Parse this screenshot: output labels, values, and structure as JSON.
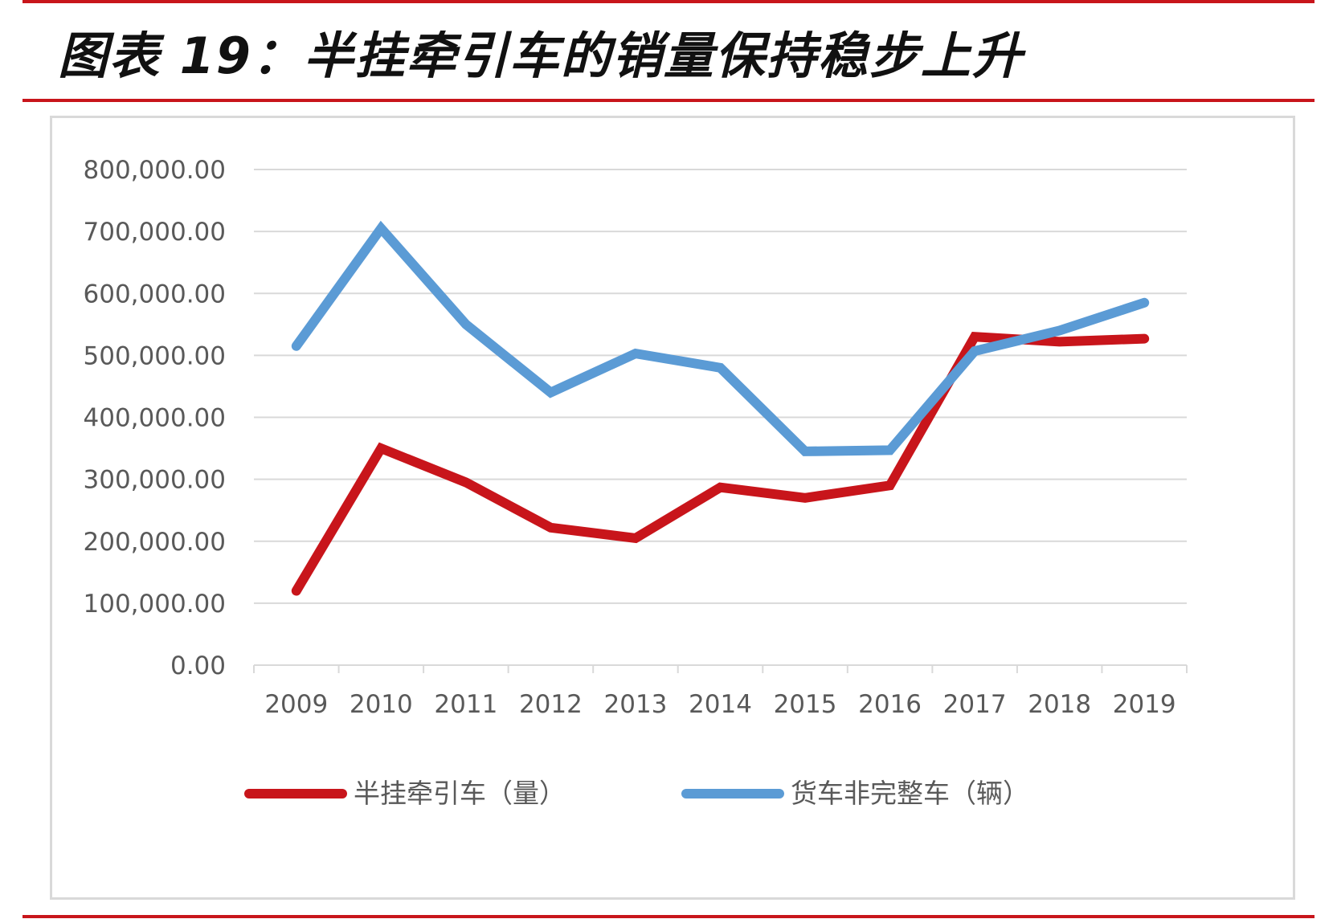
{
  "title": "图表 19：半挂牵引车的销量保持稳步上升",
  "colors": {
    "rule": "#c8151b",
    "grid": "#d9d9d9",
    "axis_text": "#595959"
  },
  "chart_data": {
    "type": "line",
    "x": [
      "2009",
      "2010",
      "2011",
      "2012",
      "2013",
      "2014",
      "2015",
      "2016",
      "2017",
      "2018",
      "2019"
    ],
    "ylim": [
      0,
      800000
    ],
    "yticks": [
      0,
      100000,
      200000,
      300000,
      400000,
      500000,
      600000,
      700000,
      800000
    ],
    "ytick_labels": [
      "0.00",
      "100,000.00",
      "200,000.00",
      "300,000.00",
      "400,000.00",
      "500,000.00",
      "600,000.00",
      "700,000.00",
      "800,000.00"
    ],
    "grid": true,
    "legend_position": "bottom",
    "series": [
      {
        "name": "半挂牵引车（量）",
        "color": "#c8151b",
        "values": [
          120000,
          350000,
          295000,
          222000,
          205000,
          287000,
          270000,
          290000,
          530000,
          522000,
          527000
        ]
      },
      {
        "name": "货车非完整车（辆）",
        "color": "#5b9bd5",
        "values": [
          515000,
          705000,
          550000,
          440000,
          503000,
          480000,
          345000,
          347000,
          507000,
          540000,
          585000
        ]
      }
    ]
  }
}
